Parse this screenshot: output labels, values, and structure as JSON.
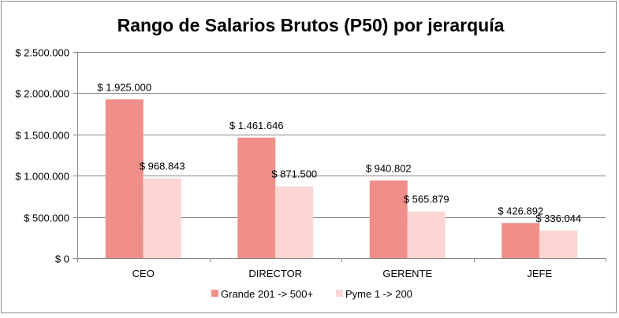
{
  "chart_data": {
    "type": "bar",
    "title": "Rango de Salarios Brutos (P50) por jerarquía",
    "categories": [
      "CEO",
      "DIRECTOR",
      "GERENTE",
      "JEFE"
    ],
    "series": [
      {
        "name": "Grande 201 -> 500+",
        "color": "#f08f8a",
        "values": [
          1925000,
          1461646,
          940802,
          426892
        ],
        "labels": [
          "$ 1.925.000",
          "$ 1.461.646",
          "$ 940.802",
          "$ 426.892"
        ]
      },
      {
        "name": "Pyme 1 -> 200",
        "color": "#fcd6d3",
        "values": [
          968843,
          871500,
          565879,
          336044
        ],
        "labels": [
          "$ 968.843",
          "$ 871.500",
          "$ 565.879",
          "$ 336.044"
        ]
      }
    ],
    "ylim": [
      0,
      2500000
    ],
    "yticks": [
      0,
      500000,
      1000000,
      1500000,
      2000000,
      2500000
    ],
    "ytick_labels": [
      "$ 0",
      "$ 500.000",
      "$ 1.000.000",
      "$ 1.500.000",
      "$ 2.000.000",
      "$ 2.500.000"
    ],
    "grid": true,
    "legend": "bottom"
  }
}
